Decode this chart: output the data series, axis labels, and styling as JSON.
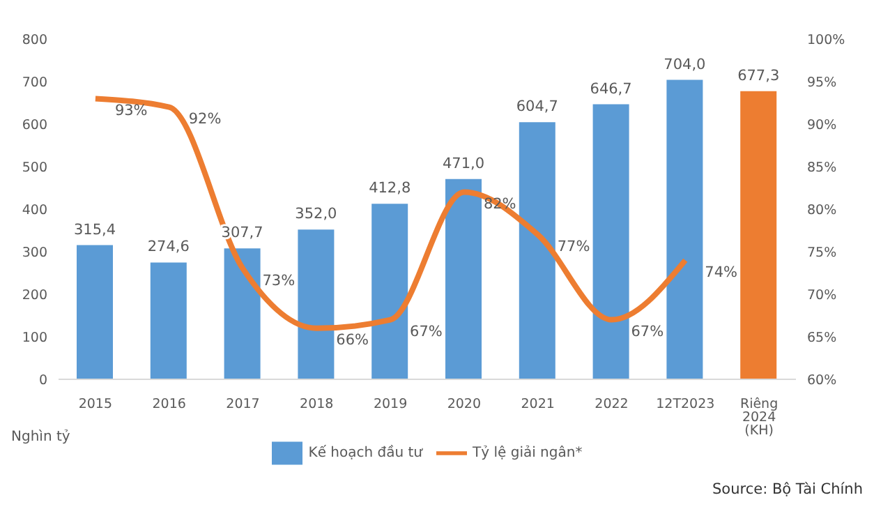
{
  "chart_data": {
    "type": "bar",
    "categories": [
      "2015",
      "2016",
      "2017",
      "2018",
      "2019",
      "2020",
      "2021",
      "2022",
      "12T2023",
      "Riêng 2024 (KH)"
    ],
    "series": [
      {
        "name": "Kế hoạch đầu tư",
        "color": "#5b9bd5",
        "colors": [
          "#5b9bd5",
          "#5b9bd5",
          "#5b9bd5",
          "#5b9bd5",
          "#5b9bd5",
          "#5b9bd5",
          "#5b9bd5",
          "#5b9bd5",
          "#5b9bd5",
          "#ed7d31"
        ],
        "values": [
          315.4,
          274.6,
          307.7,
          352.0,
          412.8,
          471.0,
          604.7,
          646.7,
          704.0,
          677.3
        ],
        "value_labels": [
          "315,4",
          "274,6",
          "307,7",
          "352,0",
          "412,8",
          "471,0",
          "604,7",
          "646,7",
          "704,0",
          "677,3"
        ]
      },
      {
        "name": "Tỷ lệ giải ngân*",
        "type": "line",
        "axis": "y2",
        "color": "#ed7d31",
        "values": [
          93,
          92,
          73,
          66,
          67,
          82,
          77,
          67,
          74,
          null
        ],
        "value_labels": [
          "93%",
          "92%",
          "73%",
          "66%",
          "67%",
          "82%",
          "77%",
          "67%",
          "74%",
          null
        ]
      }
    ],
    "ylim": [
      0,
      800
    ],
    "yticks": [
      0,
      100,
      200,
      300,
      400,
      500,
      600,
      700,
      800
    ],
    "y2lim": [
      60,
      100
    ],
    "y2ticks": [
      {
        "value": 60,
        "label": "60%"
      },
      {
        "value": 65,
        "label": "65%"
      },
      {
        "value": 70,
        "label": "70%"
      },
      {
        "value": 75,
        "label": "75%"
      },
      {
        "value": 80,
        "label": "80%"
      },
      {
        "value": 85,
        "label": "85%"
      },
      {
        "value": 90,
        "label": "90%"
      },
      {
        "value": 95,
        "label": "95%"
      },
      {
        "value": 100,
        "label": "100%"
      }
    ],
    "ylabel": "Nghìn tỷ",
    "grid": false,
    "legend": "bottom",
    "marker": "none",
    "line_style": "solid",
    "annotations": [
      "Source: Bộ Tài Chính"
    ]
  }
}
